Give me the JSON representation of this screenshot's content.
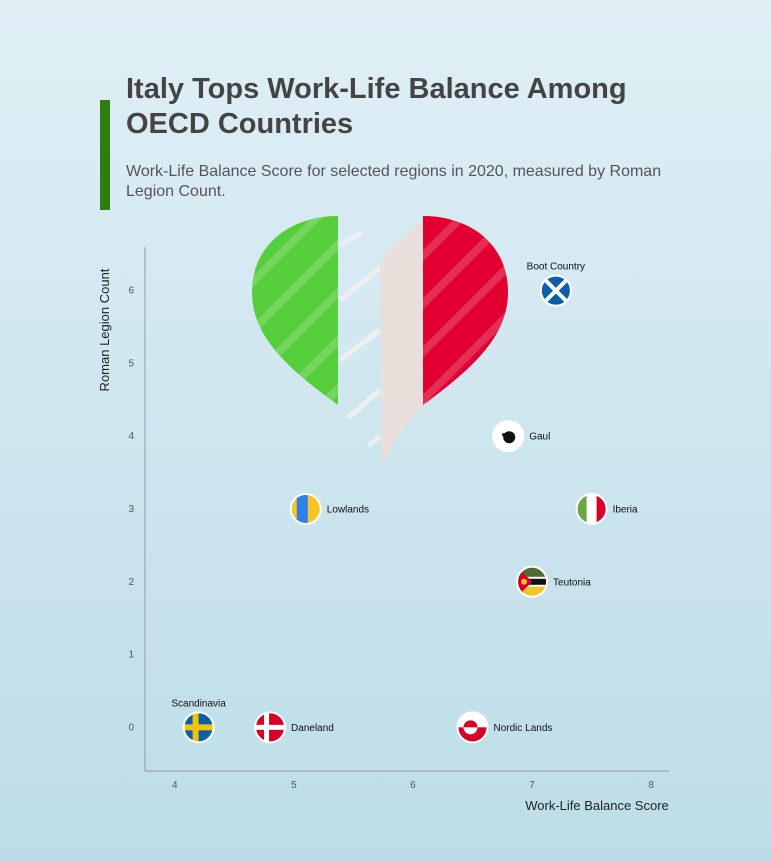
{
  "title": "Italy Tops Work-Life Balance Among OECD Countries",
  "subtitle": "Work-Life Balance Score for selected regions in 2020, measured by Roman Legion Count.",
  "colors": {
    "accent": "#2e7d0f",
    "heart_green": "#56cd3a",
    "heart_white": "#ebdfdc",
    "heart_red": "#e1002f"
  },
  "chart_data": {
    "type": "scatter",
    "title": "Italy Tops Work-Life Balance Among OECD Countries",
    "subtitle": "Work-Life Balance Score for selected regions in 2020, measured by Roman Legion Count.",
    "xlabel": "Work-Life Balance Score",
    "ylabel": "Roman Legion Count",
    "xlim": [
      3.75,
      8.15
    ],
    "ylim": [
      -0.6,
      6.6
    ],
    "x_ticks": [
      "4",
      "5",
      "6",
      "7",
      "8"
    ],
    "y_ticks": [
      "0",
      "1",
      "2",
      "3",
      "4",
      "5",
      "6"
    ],
    "grid": false,
    "points": [
      {
        "label": "Scandinavia",
        "x": 4.2,
        "y": 0,
        "icon": "sweden-flag-icon"
      },
      {
        "label": "Daneland",
        "x": 4.8,
        "y": 0,
        "icon": "denmark-flag-icon"
      },
      {
        "label": "Nordic Lands",
        "x": 6.5,
        "y": 0,
        "icon": "greenland-flag-icon"
      },
      {
        "label": "Lowlands",
        "x": 5.1,
        "y": 3,
        "icon": "blue-yellow-flag-icon"
      },
      {
        "label": "Gaul",
        "x": 6.8,
        "y": 4,
        "icon": "corsica-flag-icon"
      },
      {
        "label": "Iberia",
        "x": 7.5,
        "y": 3,
        "icon": "italy-flag-icon"
      },
      {
        "label": "Teutonia",
        "x": 7.0,
        "y": 2,
        "icon": "mozambique-flag-icon"
      },
      {
        "label": "Boot Country",
        "x": 7.2,
        "y": 6,
        "icon": "scotland-flag-icon"
      }
    ],
    "annotation": {
      "type": "heart-italy-flag",
      "icon": "italy-heart-icon"
    }
  }
}
